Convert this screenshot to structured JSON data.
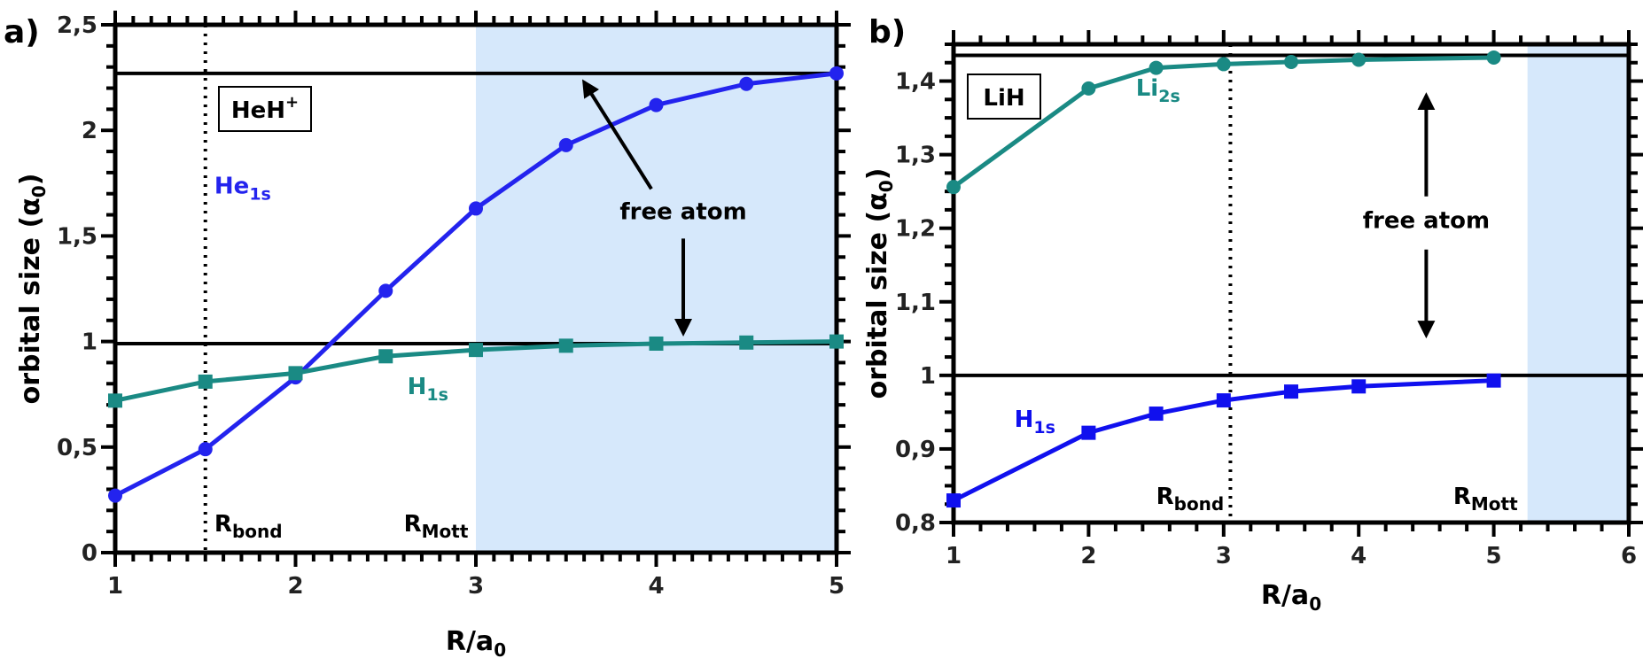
{
  "chart_data": [
    {
      "panel": "a)",
      "type": "line",
      "xlabel": "R/a",
      "xlabel_sub": "0",
      "ylabel": "orbital size (α",
      "ylabel_sub": "0",
      "ylabel_end": ")",
      "xlim": [
        1,
        5
      ],
      "ylim": [
        0,
        2.5
      ],
      "xticks": [
        1,
        2,
        3,
        4,
        5
      ],
      "xtick_labels": [
        "1",
        "2",
        "3",
        "4",
        "5"
      ],
      "yticks": [
        0,
        0.5,
        1,
        1.5,
        2,
        2.5
      ],
      "ytick_labels": [
        "0",
        "0,5",
        "1",
        "1,5",
        "2",
        "2,5"
      ],
      "molecule_label": "HeH",
      "molecule_sup": "+",
      "shaded_region": [
        3,
        5
      ],
      "shade_color": "#d6e8fb",
      "hlines": [
        2.27,
        0.99
      ],
      "vline": 1.5,
      "r_bond": {
        "main": "R",
        "sub": "bond",
        "x": 1.55,
        "y": 0.1
      },
      "r_mott": {
        "main": "R",
        "sub": "Mott",
        "x": 2.6,
        "y": 0.1
      },
      "free_atom": {
        "text": "free atom",
        "x": 4.15,
        "y": 1.58
      },
      "series": [
        {
          "name": "He",
          "name_sub": "1s",
          "color": "#2323ee",
          "marker": "circle",
          "x": [
            1,
            1.5,
            2,
            2.5,
            3,
            3.5,
            4,
            4.5,
            5
          ],
          "y": [
            0.27,
            0.49,
            0.83,
            1.24,
            1.63,
            1.93,
            2.12,
            2.22,
            2.27
          ],
          "label_x": 1.55,
          "label_y": 1.7
        },
        {
          "name": "H",
          "name_sub": "1s",
          "color": "#1a8a84",
          "marker": "square",
          "x": [
            1,
            1.5,
            2,
            2.5,
            3,
            3.5,
            4,
            4.5,
            5
          ],
          "y": [
            0.72,
            0.81,
            0.85,
            0.93,
            0.96,
            0.98,
            0.99,
            0.995,
            1.0
          ],
          "label_x": 2.62,
          "label_y": 0.75
        }
      ]
    },
    {
      "panel": "b)",
      "type": "line",
      "xlabel": "R/a",
      "xlabel_sub": "0",
      "ylabel": "orbital size (α",
      "ylabel_sub": "0",
      "ylabel_end": ")",
      "xlim": [
        1,
        6
      ],
      "ylim": [
        0.8,
        1.45
      ],
      "xticks": [
        1,
        2,
        3,
        4,
        5,
        6
      ],
      "xtick_labels": [
        "1",
        "2",
        "3",
        "4",
        "5",
        "6"
      ],
      "yticks": [
        0.8,
        0.9,
        1,
        1.1,
        1.2,
        1.3,
        1.4
      ],
      "ytick_labels": [
        "0,8",
        "0,9",
        "1",
        "1,1",
        "1,2",
        "1,3",
        "1,4"
      ],
      "molecule_label": "LiH",
      "shaded_region": [
        5.25,
        6
      ],
      "shade_color": "#d6e8fb",
      "hlines": [
        1.435,
        1.0
      ],
      "vline": 3.05,
      "r_bond": {
        "main": "R",
        "sub": "bond",
        "x": 2.5,
        "y": 0.825
      },
      "r_mott": {
        "main": "R",
        "sub": "Mott",
        "x": 4.7,
        "y": 0.825
      },
      "free_atom": {
        "text": "free atom",
        "x": 4.5,
        "y": 1.2
      },
      "series": [
        {
          "name": "Li",
          "name_sub": "2s",
          "color": "#1a8a84",
          "marker": "circle",
          "x": [
            1,
            2,
            2.5,
            3,
            3.5,
            4,
            5
          ],
          "y": [
            1.256,
            1.39,
            1.418,
            1.423,
            1.426,
            1.429,
            1.432
          ],
          "label_x": 2.35,
          "label_y": 1.38
        },
        {
          "name": "H",
          "name_sub": "1s",
          "color": "#1010ee",
          "marker": "square",
          "x": [
            1,
            2,
            2.5,
            3,
            3.5,
            4,
            5
          ],
          "y": [
            0.83,
            0.922,
            0.948,
            0.966,
            0.978,
            0.985,
            0.993
          ],
          "label_x": 1.45,
          "label_y": 0.93
        }
      ]
    }
  ]
}
